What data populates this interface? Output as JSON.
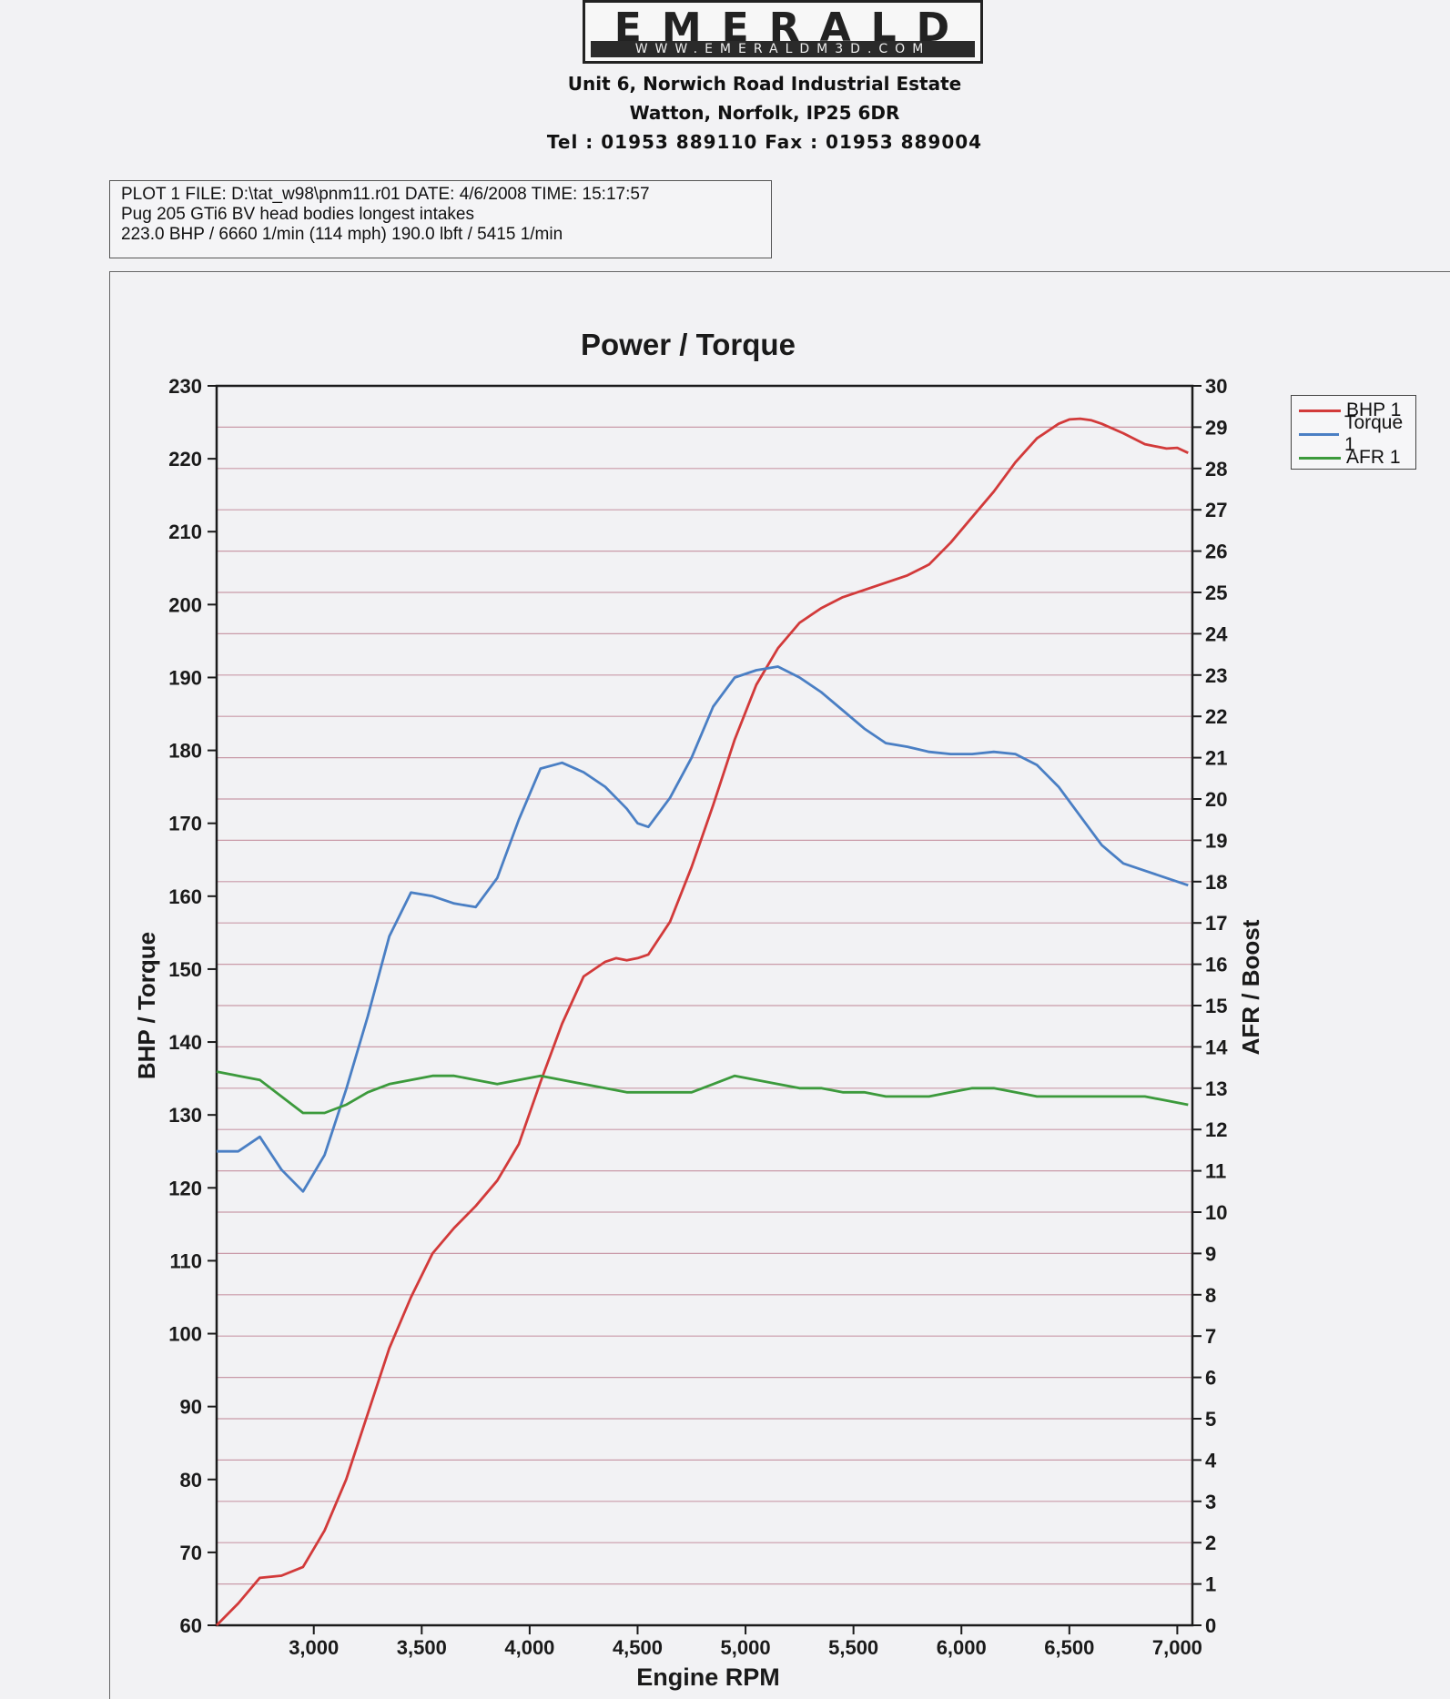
{
  "header": {
    "logo_name": "EMERALD",
    "logo_url": "WWW.EMERALDM3D.COM",
    "address_line1": "Unit 6, Norwich Road Industrial Estate",
    "address_line2": "Watton, Norfolk, IP25 6DR",
    "address_line3": "Tel : 01953 889110   Fax : 01953 889004"
  },
  "info": {
    "line1": "PLOT 1 FILE: D:\\tat_w98\\pnm11.r01  DATE: 4/6/2008  TIME: 15:17:57",
    "line2": "Pug 205 GTi6 BV head bodies longest intakes",
    "line3": "223.0 BHP / 6660 1/min (114 mph)    190.0 lbft / 5415 1/min"
  },
  "chart_data": {
    "type": "line",
    "title": "Power / Torque",
    "xlabel": "Engine RPM",
    "ylabel": "BHP / Torque",
    "y2label": "AFR / Boost",
    "xlim": [
      2550,
      7070
    ],
    "ylim": [
      60,
      230
    ],
    "y2lim": [
      0,
      30
    ],
    "xticks": [
      3000,
      3500,
      4000,
      4500,
      5000,
      5500,
      6000,
      6500,
      7000
    ],
    "xtick_labels": [
      "3,000",
      "3,500",
      "4,000",
      "4,500",
      "5,000",
      "5,500",
      "6,000",
      "6,500",
      "7,000"
    ],
    "yticks": [
      60,
      70,
      80,
      90,
      100,
      110,
      120,
      130,
      140,
      150,
      160,
      170,
      180,
      190,
      200,
      210,
      220,
      230
    ],
    "y2ticks": [
      0,
      1,
      2,
      3,
      4,
      5,
      6,
      7,
      8,
      9,
      10,
      11,
      12,
      13,
      14,
      15,
      16,
      17,
      18,
      19,
      20,
      21,
      22,
      23,
      24,
      25,
      26,
      27,
      28,
      29,
      30
    ],
    "grid": "horizontal lines on right (AFR / Boost) axis",
    "legend_position": "right of chart, top",
    "series": [
      {
        "name": "BHP 1",
        "axis": "left",
        "color": "#d23a3a",
        "x": [
          2550,
          2650,
          2750,
          2850,
          2950,
          3050,
          3150,
          3250,
          3350,
          3450,
          3550,
          3650,
          3750,
          3850,
          3950,
          4050,
          4150,
          4250,
          4350,
          4400,
          4450,
          4500,
          4550,
          4650,
          4750,
          4850,
          4950,
          5050,
          5150,
          5250,
          5350,
          5450,
          5550,
          5650,
          5750,
          5850,
          5950,
          6050,
          6150,
          6250,
          6350,
          6450,
          6500,
          6550,
          6600,
          6650,
          6750,
          6850,
          6950,
          7000,
          7050
        ],
        "y": [
          60,
          63,
          66.5,
          66.8,
          68,
          73,
          80,
          89,
          98,
          105,
          111,
          114.5,
          117.5,
          121,
          126,
          134.5,
          142.5,
          149,
          151,
          151.5,
          151.2,
          151.5,
          152,
          156.5,
          164,
          172.5,
          181.5,
          189,
          194,
          197.5,
          199.5,
          201,
          202,
          203,
          204,
          205.5,
          208.5,
          212,
          215.5,
          219.5,
          222.8,
          224.8,
          225.4,
          225.5,
          225.3,
          224.8,
          223.5,
          222,
          221.4,
          221.5,
          220.8
        ]
      },
      {
        "name": "Torque 1",
        "axis": "left",
        "color": "#4a7fc4",
        "x": [
          2550,
          2650,
          2750,
          2850,
          2950,
          3050,
          3150,
          3250,
          3350,
          3450,
          3550,
          3650,
          3750,
          3850,
          3950,
          4050,
          4150,
          4250,
          4350,
          4400,
          4450,
          4500,
          4550,
          4650,
          4750,
          4850,
          4950,
          5050,
          5150,
          5250,
          5350,
          5450,
          5550,
          5650,
          5750,
          5850,
          5950,
          6050,
          6150,
          6250,
          6350,
          6450,
          6550,
          6650,
          6750,
          6850,
          6950,
          7050
        ],
        "y": [
          125,
          125,
          127,
          122.5,
          119.5,
          124.5,
          133.5,
          143.5,
          154.5,
          160.5,
          160,
          159,
          158.5,
          162.5,
          170.5,
          177.5,
          178.3,
          177,
          175,
          173.5,
          172,
          170,
          169.5,
          173.5,
          179,
          186,
          190,
          191,
          191.5,
          190,
          188,
          185.5,
          183,
          181,
          180.5,
          179.8,
          179.5,
          179.5,
          179.8,
          179.5,
          178,
          175,
          171,
          167,
          164.5,
          163.5,
          162.5,
          161.5
        ]
      },
      {
        "name": "AFR 1",
        "axis": "right",
        "color": "#3c9a3c",
        "x": [
          2550,
          2650,
          2750,
          2850,
          2950,
          3050,
          3150,
          3250,
          3350,
          3450,
          3550,
          3650,
          3750,
          3850,
          3950,
          4050,
          4150,
          4250,
          4350,
          4450,
          4550,
          4650,
          4750,
          4850,
          4950,
          5050,
          5150,
          5250,
          5350,
          5450,
          5550,
          5650,
          5750,
          5850,
          5950,
          6050,
          6150,
          6250,
          6350,
          6450,
          6550,
          6650,
          6750,
          6850,
          6950,
          7050
        ],
        "y": [
          13.4,
          13.3,
          13.2,
          12.8,
          12.4,
          12.4,
          12.6,
          12.9,
          13.1,
          13.2,
          13.3,
          13.3,
          13.2,
          13.1,
          13.2,
          13.3,
          13.2,
          13.1,
          13.0,
          12.9,
          12.9,
          12.9,
          12.9,
          13.1,
          13.3,
          13.2,
          13.1,
          13.0,
          13.0,
          12.9,
          12.9,
          12.8,
          12.8,
          12.8,
          12.9,
          13.0,
          13.0,
          12.9,
          12.8,
          12.8,
          12.8,
          12.8,
          12.8,
          12.8,
          12.7,
          12.6
        ]
      }
    ]
  }
}
